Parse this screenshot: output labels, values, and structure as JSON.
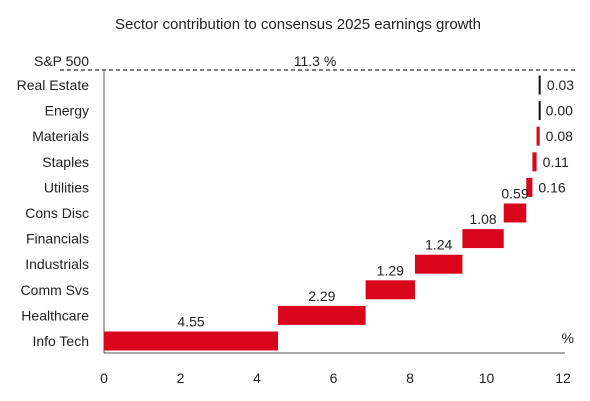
{
  "chart_data": {
    "type": "bar",
    "title": "Sector contribution to consensus 2025 earnings growth",
    "total": {
      "label": "S&P 500",
      "value": 11.3,
      "value_text": "11.3 %"
    },
    "unit_label": "%",
    "categories": [
      "Info Tech",
      "Healthcare",
      "Comm Svs",
      "Industrials",
      "Financials",
      "Cons Disc",
      "Utilities",
      "Staples",
      "Materials",
      "Energy",
      "Real Estate"
    ],
    "values": [
      4.55,
      2.29,
      1.29,
      1.24,
      1.08,
      0.59,
      0.16,
      0.11,
      0.08,
      0.0,
      0.03
    ],
    "value_labels": [
      "4.55",
      "2.29",
      "1.29",
      "1.24",
      "1.08",
      "0.59",
      "0.16",
      "0.11",
      "0.08",
      "0.00",
      "0.03"
    ],
    "xlim": [
      0,
      12
    ],
    "xticks": [
      "0",
      "2",
      "4",
      "6",
      "8",
      "10",
      "12"
    ],
    "xlabel": "",
    "ylabel": "",
    "grid": false,
    "colors": {
      "bar": "#d9061b",
      "small_bar": "#111111",
      "total_text": "#d9061b",
      "axis": "#333333",
      "text": "#222222"
    }
  }
}
